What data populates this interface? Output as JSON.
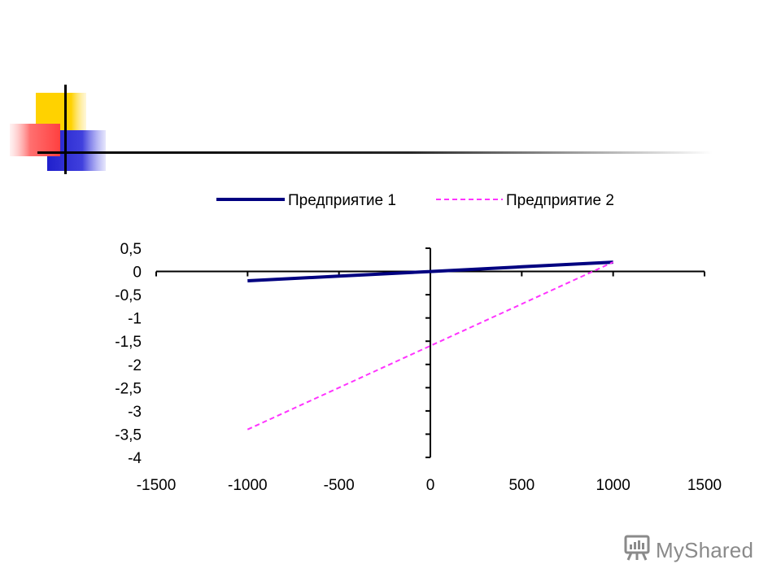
{
  "slide": {
    "colors": {
      "yellow": "#FFD200",
      "red": "#FF5A5A",
      "blue": "#3333CC",
      "rule": "#000000"
    }
  },
  "chart_data": {
    "type": "line",
    "xlim": [
      -1500,
      1500
    ],
    "ylim": [
      -4,
      0.5
    ],
    "x_ticks": [
      -1500,
      -1000,
      -500,
      0,
      500,
      1000,
      1500
    ],
    "x_tick_labels": [
      "-1500",
      "-1000",
      "-500",
      "0",
      "500",
      "1000",
      "1500"
    ],
    "y_ticks": [
      0.5,
      0,
      -0.5,
      -1,
      -1.5,
      -2,
      -2.5,
      -3,
      -3.5,
      -4
    ],
    "y_tick_labels": [
      "0,5",
      "0",
      "-0,5",
      "-1",
      "-1,5",
      "-2",
      "-2,5",
      "-3",
      "-3,5",
      "-4"
    ],
    "grid": false,
    "legend": "top",
    "series": [
      {
        "name": "Предприятие 1",
        "color": "#000080",
        "style": "solid",
        "x": [
          -1000,
          -500,
          0,
          500,
          1000
        ],
        "y": [
          -0.2,
          -0.1,
          0,
          0.1,
          0.2
        ]
      },
      {
        "name": "Предприятие 2",
        "color": "#FF33FF",
        "style": "dashed",
        "x": [
          -1000,
          -500,
          0,
          500,
          1000
        ],
        "y": [
          -3.4,
          -2.5,
          -1.6,
          -0.7,
          0.2
        ]
      }
    ]
  },
  "watermark": {
    "text": "MyShared",
    "icon": "presentation-board-icon",
    "color": "#8a8a8a"
  }
}
